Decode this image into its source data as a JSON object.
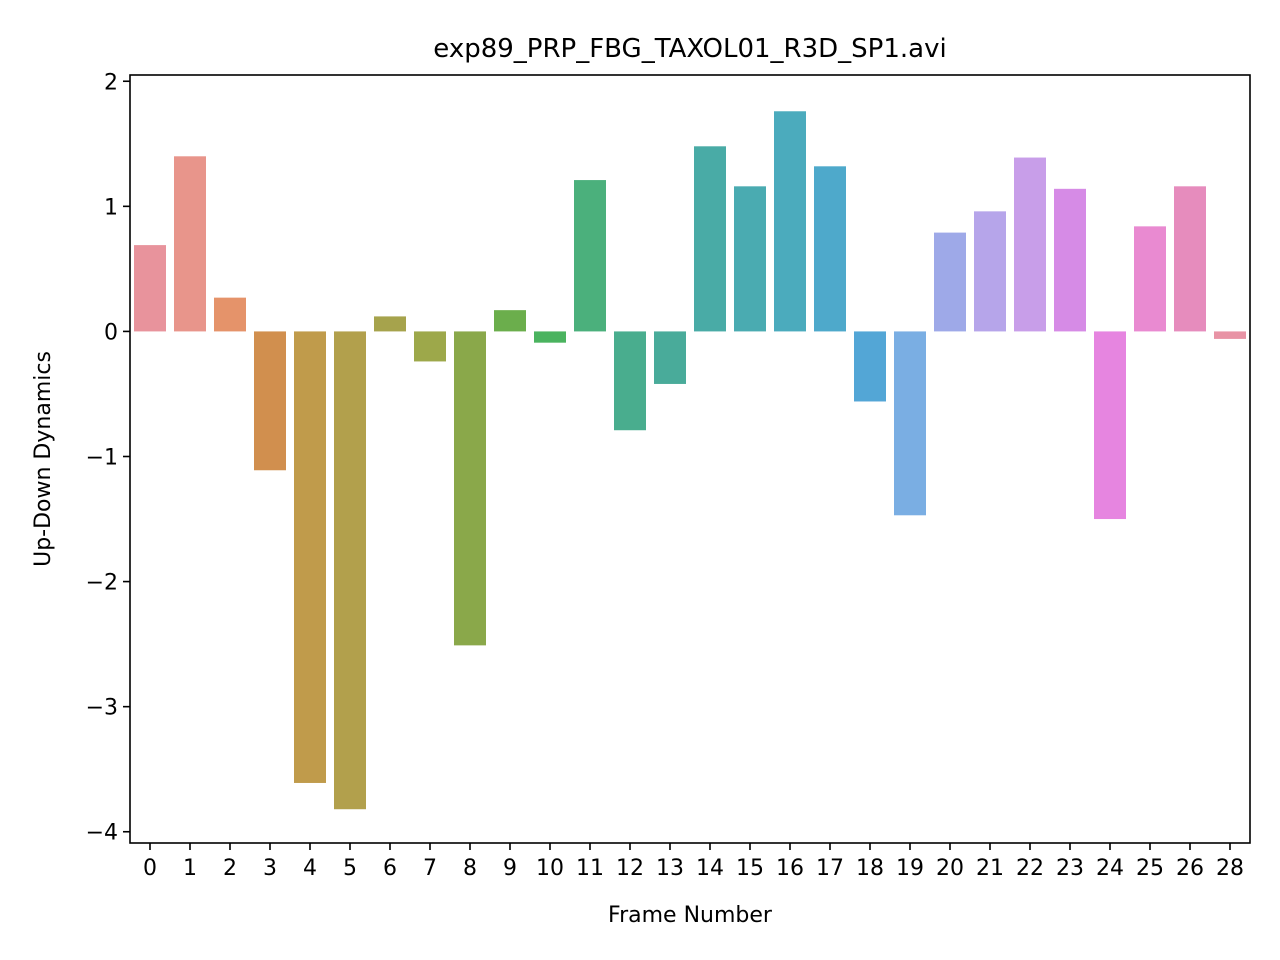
{
  "chart_data": {
    "type": "bar",
    "title": "exp89_PRP_FBG_TAXOL01_R3D_SP1.avi",
    "xlabel": "Frame Number",
    "ylabel": "Up-Down Dynamics",
    "ylim": [
      -4.09,
      2.05
    ],
    "yticks": [
      2,
      1,
      0,
      -1,
      -2,
      -3,
      -4
    ],
    "ytick_labels": [
      "2",
      "1",
      "0",
      "−1",
      "−2",
      "−3",
      "−4"
    ],
    "categories": [
      "0",
      "1",
      "2",
      "3",
      "4",
      "5",
      "6",
      "7",
      "8",
      "9",
      "10",
      "11",
      "12",
      "13",
      "14",
      "15",
      "16",
      "17",
      "18",
      "19",
      "20",
      "21",
      "22",
      "23",
      "24",
      "25",
      "26",
      "28"
    ],
    "values": [
      0.69,
      1.4,
      0.27,
      -1.11,
      -3.61,
      -3.82,
      0.12,
      -0.24,
      -2.51,
      0.17,
      -0.09,
      1.21,
      -0.79,
      -0.42,
      1.48,
      1.16,
      1.76,
      1.32,
      -0.56,
      -1.47,
      0.79,
      0.96,
      1.39,
      1.14,
      -1.5,
      0.84,
      1.16,
      -0.06
    ],
    "colors": [
      "#e8939c",
      "#e8958b",
      "#e5936a",
      "#d18f4e",
      "#c09b4b",
      "#b2a04c",
      "#a6a34c",
      "#9da84a",
      "#8aa84a",
      "#6bae4c",
      "#4ab35f",
      "#4bb07c",
      "#49ad8e",
      "#49ab9a",
      "#49aba6",
      "#4aabb1",
      "#4babbd",
      "#4ea9cb",
      "#53a6d6",
      "#7aaee3",
      "#9ea9e8",
      "#b6a5ea",
      "#c89ee9",
      "#d68be6",
      "#e685e0",
      "#e98ad1",
      "#e68cbd",
      "#e893a5"
    ],
    "grid": false,
    "legend": "none"
  }
}
